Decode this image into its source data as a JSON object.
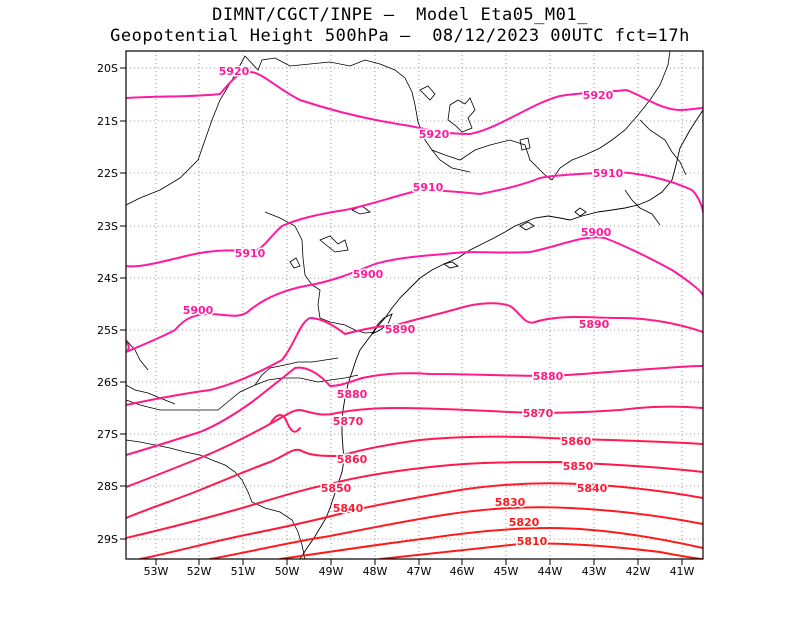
{
  "header": {
    "line1": "DIMNT/CGCT/INPE –  Model Eta05_M01_",
    "line2": "Geopotential Height 500hPa –  08/12/2023 00UTC fct=17h"
  },
  "colors": {
    "high": "#ff1aa0",
    "mid": "#ff1a6a",
    "low": "#ff1a1a",
    "border": "#000000",
    "grid": "#999999"
  },
  "axes": {
    "lat_labels": [
      "20S",
      "21S",
      "22S",
      "23S",
      "24S",
      "25S",
      "26S",
      "27S",
      "28S",
      "29S"
    ],
    "lon_labels": [
      "53W",
      "52W",
      "51W",
      "50W",
      "49W",
      "48W",
      "47W",
      "46W",
      "45W",
      "44W",
      "43W",
      "42W",
      "41W"
    ]
  },
  "contour_labels": {
    "c5920a": "5920",
    "c5920b": "5920",
    "c5920c": "5920",
    "c5910a": "5910",
    "c5910b": "5910",
    "c5910c": "5910",
    "c5900a": "5900",
    "c5900b": "5900",
    "c5900c": "5900",
    "c5890a": "5890",
    "c5890b": "5890",
    "c5880a": "5880",
    "c5880b": "5880",
    "c5870a": "5870",
    "c5870b": "5870",
    "c5860a": "5860",
    "c5860b": "5860",
    "c5850a": "5850",
    "c5850b": "5850",
    "c5840a": "5840",
    "c5840b": "5840",
    "c5830": "5830",
    "c5820": "5820",
    "c5810": "5810"
  }
}
